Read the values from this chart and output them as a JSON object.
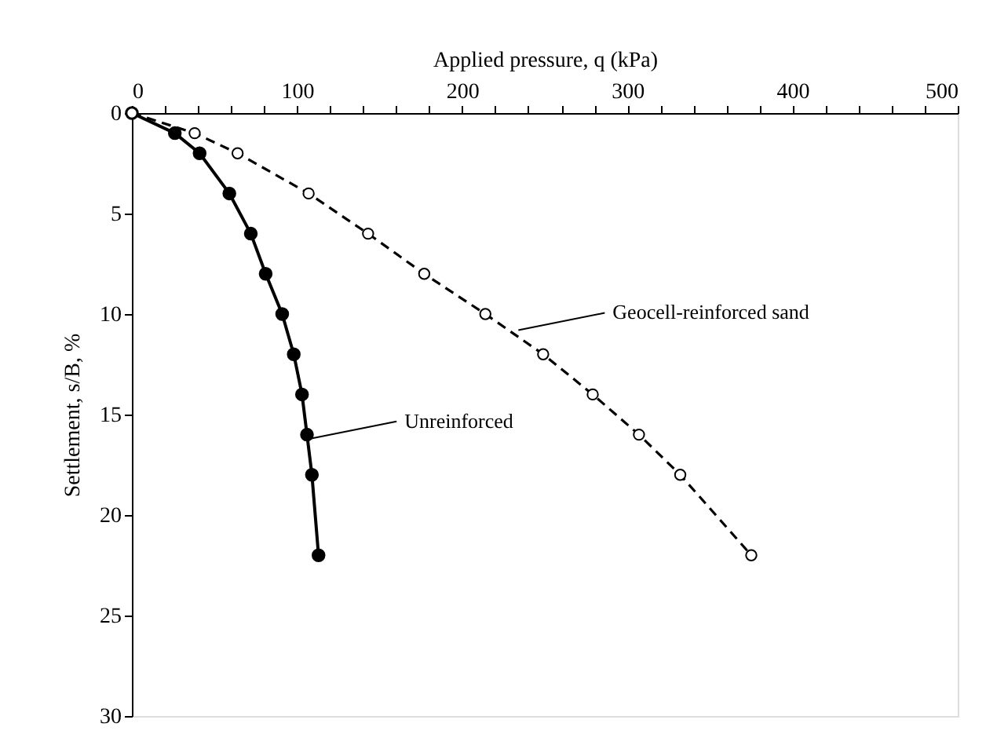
{
  "chart_data": {
    "type": "line",
    "xlabel": "Applied pressure, q (kPa)",
    "ylabel": "Settlement, s/B, %",
    "xlim": [
      0,
      500
    ],
    "ylim": [
      30,
      0
    ],
    "xticks": [
      0,
      {
        "value": 20,
        "label": null
      },
      {
        "value": 40,
        "label": null
      },
      {
        "value": 60,
        "label": null
      },
      {
        "value": 80,
        "label": null
      },
      100,
      {
        "value": 120,
        "label": null
      },
      {
        "value": 140,
        "label": null
      },
      {
        "value": 160,
        "label": null
      },
      {
        "value": 180,
        "label": null
      },
      200,
      {
        "value": 220,
        "label": null
      },
      {
        "value": 240,
        "label": null
      },
      {
        "value": 260,
        "label": null
      },
      {
        "value": 280,
        "label": null
      },
      300,
      {
        "value": 320,
        "label": null
      },
      {
        "value": 340,
        "label": null
      },
      {
        "value": 360,
        "label": null
      },
      {
        "value": 380,
        "label": null
      },
      400,
      {
        "value": 420,
        "label": null
      },
      {
        "value": 440,
        "label": null
      },
      {
        "value": 460,
        "label": null
      },
      {
        "value": 480,
        "label": null
      },
      500
    ],
    "yticks": [
      0,
      5,
      10,
      15,
      20,
      25,
      30
    ],
    "grid": false,
    "marker": "circle",
    "series": [
      {
        "color": "#000000",
        "line_style": "solid",
        "x": [
          0,
          26,
          41,
          59,
          72,
          81,
          91,
          98,
          103,
          106,
          109,
          113
        ],
        "values": [
          0,
          1,
          2,
          4,
          6,
          8,
          10,
          12,
          14,
          16,
          18,
          22
        ]
      },
      {
        "color": "#000000",
        "line_style": "dashed",
        "x": [
          0,
          38,
          64,
          107,
          143,
          177,
          214,
          249,
          279,
          307,
          332,
          375
        ],
        "values": [
          0,
          1,
          2,
          4,
          6,
          8,
          10,
          12,
          14,
          16,
          18,
          22
        ]
      }
    ],
    "annotations": [
      {
        "text": "Geocell-reinforced sand",
        "x": 234,
        "y": 10.8
      },
      {
        "text": "Unreinforced",
        "x": 108,
        "y": 16.2
      }
    ]
  }
}
